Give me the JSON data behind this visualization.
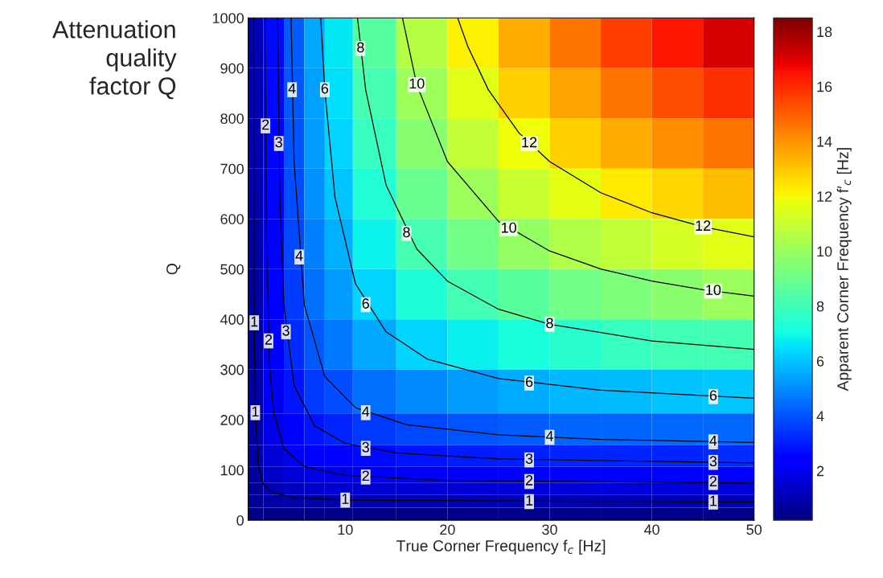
{
  "chart_data": {
    "type": "heatmap",
    "xlabel": "True Corner Frequency f$_{c}$ [Hz]",
    "ylabel": "Q",
    "clabel": "Apparent Corner Frequency f′$_{c}$ [Hz]",
    "annotations": [
      "Attenuation\nquality\nfactor Q",
      {
        "text": "1",
        "x": 1.1,
        "y": 393
      },
      {
        "text": "1",
        "x": 1.2,
        "y": 214
      },
      {
        "text": "1",
        "x": 10,
        "y": 40
      },
      {
        "text": "1",
        "x": 28,
        "y": 37
      },
      {
        "text": "1",
        "x": 46,
        "y": 36
      },
      {
        "text": "2",
        "x": 2.2,
        "y": 785
      },
      {
        "text": "2",
        "x": 2.5,
        "y": 357
      },
      {
        "text": "2",
        "x": 12,
        "y": 86
      },
      {
        "text": "2",
        "x": 28,
        "y": 77
      },
      {
        "text": "2",
        "x": 46,
        "y": 75
      },
      {
        "text": "3",
        "x": 3.5,
        "y": 750
      },
      {
        "text": "3",
        "x": 4.2,
        "y": 375
      },
      {
        "text": "3",
        "x": 12,
        "y": 143
      },
      {
        "text": "3",
        "x": 28,
        "y": 120
      },
      {
        "text": "3",
        "x": 46,
        "y": 115
      },
      {
        "text": "4",
        "x": 4.8,
        "y": 857
      },
      {
        "text": "4",
        "x": 5.5,
        "y": 524
      },
      {
        "text": "4",
        "x": 12,
        "y": 214
      },
      {
        "text": "4",
        "x": 30,
        "y": 165
      },
      {
        "text": "4",
        "x": 46,
        "y": 156
      },
      {
        "text": "6",
        "x": 8,
        "y": 857
      },
      {
        "text": "6",
        "x": 12,
        "y": 429
      },
      {
        "text": "6",
        "x": 28,
        "y": 273
      },
      {
        "text": "6",
        "x": 46,
        "y": 246
      },
      {
        "text": "8",
        "x": 11.5,
        "y": 939
      },
      {
        "text": "8",
        "x": 16,
        "y": 571
      },
      {
        "text": "8",
        "x": 30,
        "y": 390
      },
      {
        "text": "10",
        "x": 17,
        "y": 867
      },
      {
        "text": "10",
        "x": 26,
        "y": 580
      },
      {
        "text": "10",
        "x": 46,
        "y": 456
      },
      {
        "text": "12",
        "x": 28,
        "y": 750
      },
      {
        "text": "12",
        "x": 45,
        "y": 584
      }
    ],
    "x": [
      1,
      3,
      5,
      7,
      9,
      12.5,
      17.5,
      22.5,
      27.5,
      32.5,
      37.5,
      42.5,
      47.5
    ],
    "y": [
      950,
      850,
      750,
      650,
      550,
      450,
      350,
      250,
      175,
      125,
      87.5,
      62.5,
      37.5,
      12.5
    ],
    "cells": [
      [
        1.0,
        2.7,
        4.2,
        5.5,
        6.7,
        8.5,
        10.6,
        12.2,
        13.5,
        14.6,
        15.6,
        16.4,
        17.1
      ],
      [
        1.0,
        2.7,
        4.1,
        5.4,
        6.5,
        8.2,
        10.1,
        11.6,
        12.8,
        13.7,
        14.6,
        15.3,
        15.9
      ],
      [
        1.0,
        2.6,
        4.0,
        5.3,
        6.3,
        7.8,
        9.6,
        10.9,
        11.9,
        12.8,
        13.5,
        14.1,
        14.6
      ],
      [
        1.0,
        2.6,
        3.9,
        5.1,
        6.0,
        7.4,
        8.9,
        10.1,
        11.0,
        11.7,
        12.3,
        12.7,
        13.2
      ],
      [
        0.9,
        2.5,
        3.8,
        4.8,
        5.7,
        6.9,
        8.2,
        9.1,
        9.9,
        10.5,
        10.9,
        11.3,
        11.6
      ],
      [
        0.9,
        2.4,
        3.6,
        4.5,
        5.3,
        6.3,
        7.3,
        8.1,
        8.6,
        9.1,
        9.4,
        9.7,
        10.0
      ],
      [
        0.9,
        2.3,
        3.3,
        4.1,
        4.7,
        5.5,
        6.3,
        6.8,
        7.2,
        7.5,
        7.8,
        8.0,
        8.1
      ],
      [
        0.9,
        2.1,
        2.9,
        3.5,
        3.9,
        4.5,
        5.0,
        5.3,
        5.6,
        5.8,
        5.9,
        6.0,
        6.1
      ],
      [
        0.8,
        1.9,
        2.5,
        2.9,
        3.2,
        3.5,
        3.8,
        4.0,
        4.2,
        4.3,
        4.3,
        4.4,
        4.4
      ],
      [
        0.8,
        1.6,
        2.1,
        2.3,
        2.5,
        2.7,
        2.9,
        3.0,
        3.1,
        3.2,
        3.2,
        3.2,
        3.3
      ],
      [
        0.7,
        1.4,
        1.6,
        1.8,
        1.9,
        2.1,
        2.2,
        2.2,
        2.3,
        2.3,
        2.3,
        2.3,
        2.3
      ],
      [
        0.6,
        1.1,
        1.3,
        1.4,
        1.5,
        1.5,
        1.6,
        1.6,
        1.7,
        1.7,
        1.7,
        1.7,
        1.7
      ],
      [
        0.5,
        0.8,
        0.9,
        0.9,
        0.9,
        1.0,
        1.0,
        1.0,
        1.0,
        1.0,
        1.0,
        1.0,
        1.0
      ],
      [
        0.3,
        0.3,
        0.3,
        0.3,
        0.3,
        0.3,
        0.3,
        0.4,
        0.4,
        0.4,
        0.4,
        0.4,
        0.4
      ]
    ],
    "series": [
      {
        "type": "line",
        "color": "#000000",
        "x": [
          1.04,
          1.1,
          1.2,
          1.5,
          2,
          3,
          5,
          10,
          50
        ],
        "values": [
          1000,
          393,
          214,
          107,
          71,
          54,
          45,
          40,
          36
        ]
      },
      {
        "type": "line",
        "color": "#000000",
        "x": [
          2.15,
          2.3,
          2.6,
          3,
          4,
          6,
          10,
          20,
          50
        ],
        "values": [
          1000,
          548,
          310,
          214,
          143,
          107,
          89,
          79,
          74
        ]
      },
      {
        "type": "line",
        "color": "#000000",
        "x": [
          3.4,
          3.6,
          4,
          5,
          7,
          10,
          15,
          25,
          50
        ],
        "values": [
          1000,
          643,
          429,
          268,
          188,
          153,
          134,
          122,
          114
        ]
      },
      {
        "type": "line",
        "color": "#000000",
        "x": [
          4.7,
          5,
          6,
          8,
          11,
          16,
          25,
          35,
          50
        ],
        "values": [
          1000,
          714,
          429,
          286,
          224,
          190,
          170,
          161,
          155
        ]
      },
      {
        "type": "line",
        "color": "#000000",
        "x": [
          7.6,
          8,
          9,
          11,
          14,
          18,
          25,
          35,
          50
        ],
        "values": [
          1000,
          857,
          643,
          471,
          375,
          321,
          282,
          259,
          243
        ]
      },
      {
        "type": "line",
        "color": "#000000",
        "x": [
          11.2,
          12,
          14,
          17,
          20,
          25,
          30,
          40,
          50
        ],
        "values": [
          1000,
          857,
          667,
          540,
          476,
          420,
          390,
          357,
          340
        ]
      },
      {
        "type": "line",
        "color": "#000000",
        "x": [
          15.6,
          17,
          20,
          25,
          30,
          35,
          40,
          45,
          50
        ],
        "values": [
          1000,
          867,
          714,
          595,
          536,
          500,
          476,
          459,
          446
        ]
      },
      {
        "type": "line",
        "color": "#000000",
        "x": [
          21,
          22,
          24,
          27,
          30,
          35,
          40,
          45,
          50
        ],
        "values": [
          1000,
          943,
          857,
          771,
          714,
          652,
          612,
          584,
          564
        ]
      }
    ],
    "xlim": [
      0.5,
      50
    ],
    "ylim": [
      0,
      1000
    ],
    "xticks": [
      10,
      20,
      30,
      40,
      50
    ],
    "yticks": [
      0,
      100,
      200,
      300,
      400,
      500,
      600,
      700,
      800,
      900,
      1000
    ],
    "clim": [
      0.2,
      18.5
    ],
    "cticks": [
      2,
      4,
      6,
      8,
      10,
      12,
      14,
      16,
      18
    ],
    "grid": false
  }
}
